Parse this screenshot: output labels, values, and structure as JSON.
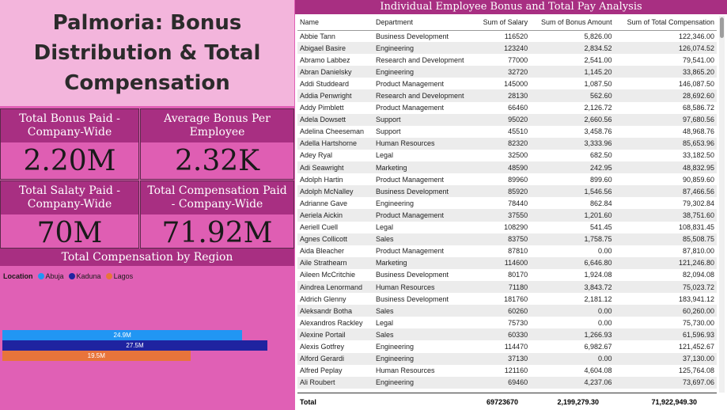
{
  "title": "Palmoria: Bonus Distribution & Total Compensation",
  "kpis": [
    {
      "label": "Total Bonus Paid - Company-Wide",
      "value": "2.20M"
    },
    {
      "label": "Average Bonus Per Employee",
      "value": "2.32K"
    },
    {
      "label": "Total Salaty Paid - Company-Wide",
      "value": "70M"
    },
    {
      "label": "Total Compensation Paid - Company-Wide",
      "value": "71.92M"
    }
  ],
  "region_chart": {
    "title": "Total Compensation by Region",
    "legend_title": "Location",
    "legend": [
      {
        "name": "Abuja",
        "color": "#2196f3"
      },
      {
        "name": "Kaduna",
        "color": "#1f23a0"
      },
      {
        "name": "Lagos",
        "color": "#e8743b"
      }
    ]
  },
  "chart_data": {
    "type": "bar",
    "title": "Total Compensation by Region",
    "legend_title": "Location",
    "categories": [
      "Abuja",
      "Kaduna",
      "Lagos"
    ],
    "values": [
      24.9,
      27.5,
      19.5
    ],
    "value_labels": [
      "24.9M",
      "27.5M",
      "19.5M"
    ],
    "colors": [
      "#2196f3",
      "#1f23a0",
      "#e8743b"
    ],
    "orientation": "horizontal",
    "legend_placement": "top-left"
  },
  "table": {
    "title": "Individual Employee Bonus and Total Pay Analysis",
    "columns": [
      "Name",
      "Department",
      "Sum of Salary",
      "Sum of Bonus Amount",
      "Sum of Total Compensation"
    ],
    "rows": [
      [
        "Abbie Tann",
        "Business Development",
        "116520",
        "5,826.00",
        "122,346.00"
      ],
      [
        "Abigael Basire",
        "Engineering",
        "123240",
        "2,834.52",
        "126,074.52"
      ],
      [
        "Abramo Labbez",
        "Research and Development",
        "77000",
        "2,541.00",
        "79,541.00"
      ],
      [
        "Abran Danielsky",
        "Engineering",
        "32720",
        "1,145.20",
        "33,865.20"
      ],
      [
        "Addi Studdeard",
        "Product Management",
        "145000",
        "1,087.50",
        "146,087.50"
      ],
      [
        "Addia Penwright",
        "Research and Development",
        "28130",
        "562.60",
        "28,692.60"
      ],
      [
        "Addy Pimblett",
        "Product Management",
        "66460",
        "2,126.72",
        "68,586.72"
      ],
      [
        "Adela Dowsett",
        "Support",
        "95020",
        "2,660.56",
        "97,680.56"
      ],
      [
        "Adelina Cheeseman",
        "Support",
        "45510",
        "3,458.76",
        "48,968.76"
      ],
      [
        "Adella Hartshorne",
        "Human Resources",
        "82320",
        "3,333.96",
        "85,653.96"
      ],
      [
        "Adey Ryal",
        "Legal",
        "32500",
        "682.50",
        "33,182.50"
      ],
      [
        "Adi Seawright",
        "Marketing",
        "48590",
        "242.95",
        "48,832.95"
      ],
      [
        "Adolph Hartin",
        "Product Management",
        "89960",
        "899.60",
        "90,859.60"
      ],
      [
        "Adolph McNalley",
        "Business Development",
        "85920",
        "1,546.56",
        "87,466.56"
      ],
      [
        "Adrianne Gave",
        "Engineering",
        "78440",
        "862.84",
        "79,302.84"
      ],
      [
        "Aeriela Aickin",
        "Product Management",
        "37550",
        "1,201.60",
        "38,751.60"
      ],
      [
        "Aeriell Cuell",
        "Legal",
        "108290",
        "541.45",
        "108,831.45"
      ],
      [
        "Agnes Collicott",
        "Sales",
        "83750",
        "1,758.75",
        "85,508.75"
      ],
      [
        "Aida Bleacher",
        "Product Management",
        "87810",
        "0.00",
        "87,810.00"
      ],
      [
        "Aile Strathearn",
        "Marketing",
        "114600",
        "6,646.80",
        "121,246.80"
      ],
      [
        "Aileen McCritchie",
        "Business Development",
        "80170",
        "1,924.08",
        "82,094.08"
      ],
      [
        "Aindrea Lenormand",
        "Human Resources",
        "71180",
        "3,843.72",
        "75,023.72"
      ],
      [
        "Aldrich Glenny",
        "Business Development",
        "181760",
        "2,181.12",
        "183,941.12"
      ],
      [
        "Aleksandr Botha",
        "Sales",
        "60260",
        "0.00",
        "60,260.00"
      ],
      [
        "Alexandros Rackley",
        "Legal",
        "75730",
        "0.00",
        "75,730.00"
      ],
      [
        "Alexine Portail",
        "Sales",
        "60330",
        "1,266.93",
        "61,596.93"
      ],
      [
        "Alexis Gotfrey",
        "Engineering",
        "114470",
        "6,982.67",
        "121,452.67"
      ],
      [
        "Alford Gerardi",
        "Engineering",
        "37130",
        "0.00",
        "37,130.00"
      ],
      [
        "Alfred Peplay",
        "Human Resources",
        "121160",
        "4,604.08",
        "125,764.08"
      ],
      [
        "Ali Roubert",
        "Engineering",
        "69460",
        "4,237.06",
        "73,697.06"
      ]
    ],
    "total": [
      "Total",
      "",
      "69723670",
      "2,199,279.30",
      "71,922,949.30"
    ]
  }
}
